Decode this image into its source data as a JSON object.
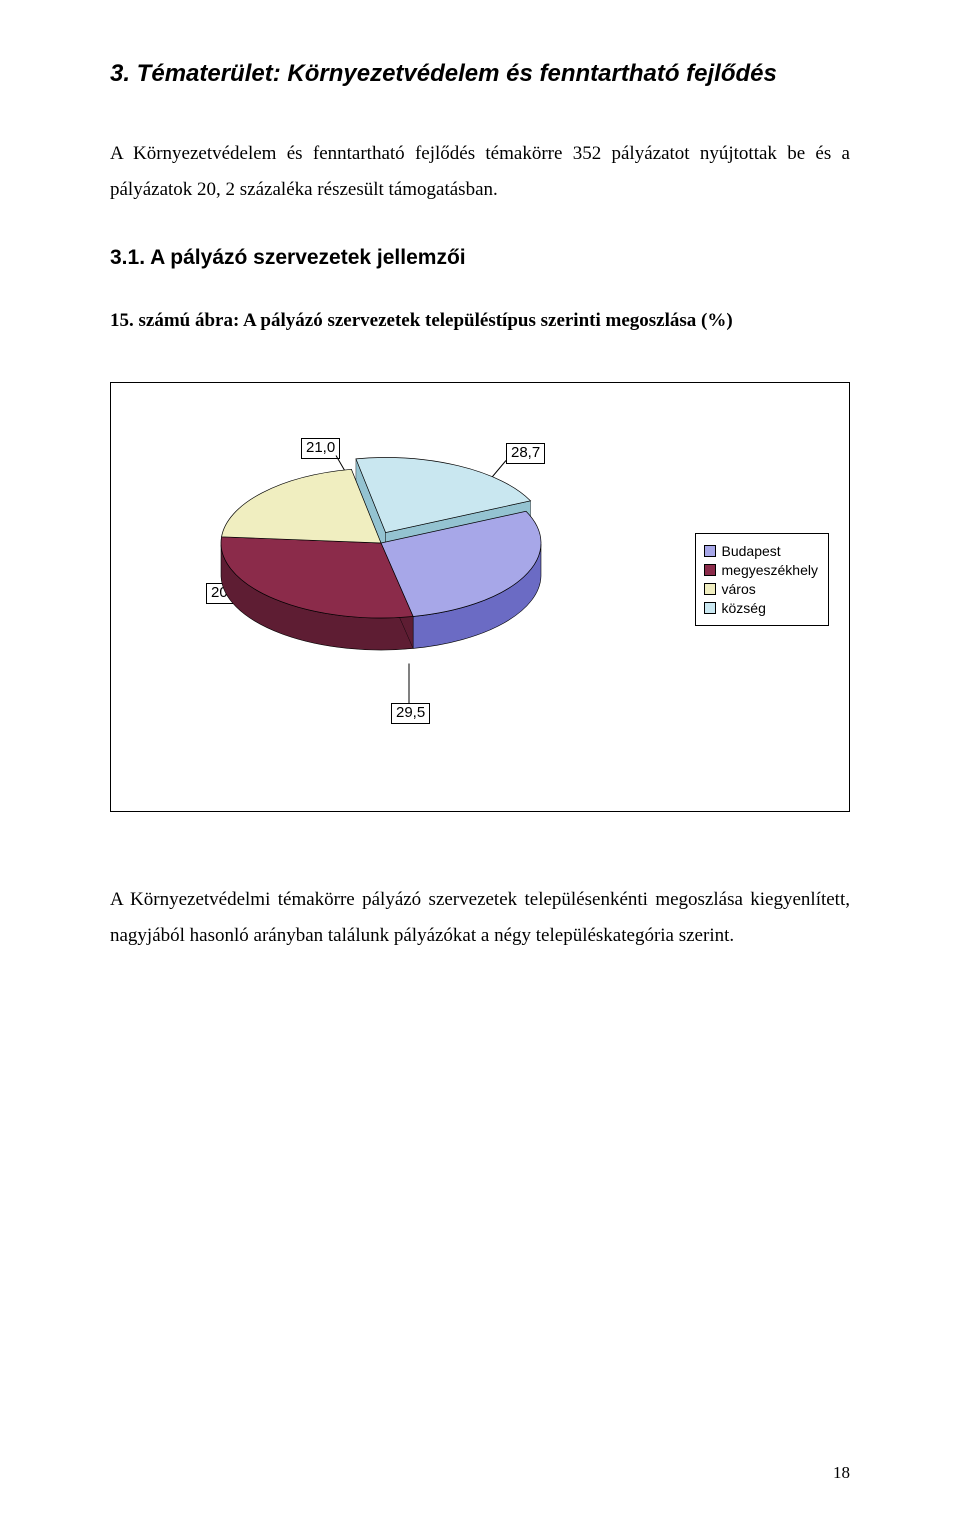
{
  "heading": "3. Tématerület: Környezetvédelem és fenntartható fejlődés",
  "intro": "A Környezetvédelem és fenntartható fejlődés témakörre 352 pályázatot nyújtottak be és a pályázatok 20, 2 százaléka részesült támogatásban.",
  "sub_heading": "3.1. A pályázó szervezetek jellemzői",
  "figure_caption": "15. számú ábra: A pályázó szervezetek településtípus szerinti megoszlása (%)",
  "conclusion": "A Környezetvédelmi témakörre pályázó szervezetek településenkénti megoszlása kiegyenlített, nagyjából hasonló arányban találunk pályázókat a négy településkategória szerint.",
  "page_number": "18",
  "chart": {
    "type": "pie-3d",
    "slices": [
      {
        "label": "Budapest",
        "value": 28.7,
        "top_fill": "#a7a7e8",
        "side_fill": "#6b6bc4"
      },
      {
        "label": "megyeszékhely",
        "value": 29.5,
        "top_fill": "#8b2b4a",
        "side_fill": "#5e1d33"
      },
      {
        "label": "város",
        "value": 20.7,
        "top_fill": "#f0eec0",
        "side_fill": "#c9c78f"
      },
      {
        "label": "község",
        "value": 21.0,
        "top_fill": "#c9e7f0",
        "side_fill": "#94c3d1"
      }
    ],
    "legend_items": [
      {
        "label": "Budapest",
        "swatch": "#a7a7e8"
      },
      {
        "label": "megyeszékhely",
        "swatch": "#8b2b4a"
      },
      {
        "label": "város",
        "swatch": "#f0eec0"
      },
      {
        "label": "község",
        "swatch": "#c9e7f0"
      }
    ],
    "callouts": {
      "v287": "28,7",
      "v295": "29,5",
      "v207": "20,7",
      "v210": "21,0"
    },
    "border_color": "#000000",
    "background_color": "#ffffff"
  }
}
